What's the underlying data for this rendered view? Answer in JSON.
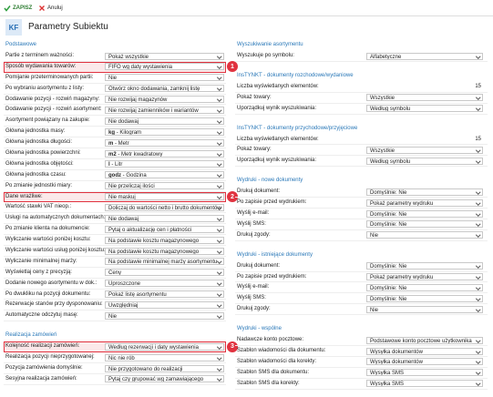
{
  "toolbar": {
    "save": "ZAPISZ",
    "cancel": "Anuluj"
  },
  "header": {
    "badge": "KF",
    "title": "Parametry Subiektu"
  },
  "left": {
    "sections": [
      {
        "title": "Podstawowe",
        "rows": [
          {
            "label": "Partie z terminem ważności:",
            "value": "Pokaż wszystkie"
          },
          {
            "label": "Sposób wydawania towarów:",
            "value": "FIFO wg daty wystawienia",
            "badge": "1"
          },
          {
            "label": "Pomijanie przeterminowanych partii:",
            "value": "Nie"
          },
          {
            "label": "Po wybraniu asortymentu z listy:",
            "value": "Otwórz okno dodawania, zamknij listę"
          },
          {
            "label": "Dodawanie pozycji - rozwiń magazyny:",
            "value": "Nie rozwijaj magazynów"
          },
          {
            "label": "Dodawanie pozycji - rozwiń asortyment:",
            "value": "Nie rozwijaj zamienników i wariantów"
          },
          {
            "label": "Asortyment powiązany na zakupie:",
            "value": "Nie dodawaj"
          },
          {
            "label": "Główna jednostka masy:",
            "code": "kg",
            "value": "- Kilogram"
          },
          {
            "label": "Główna jednostka długości:",
            "code": "m",
            "value": "- Metr"
          },
          {
            "label": "Główna jednostka powierzchni:",
            "code": "m2",
            "value": "- Metr kwadratowy"
          },
          {
            "label": "Główna jednostka objętości:",
            "code": "l",
            "value": "- Litr"
          },
          {
            "label": "Główna jednostka czasu:",
            "code": "godz",
            "value": "- Godzina"
          },
          {
            "label": "Po zmianie jednostki miary:",
            "value": "Nie przeliczaj ilości"
          },
          {
            "label": "Dane wrażliwe:",
            "value": "Nie maskuj",
            "badge": "2"
          },
          {
            "label": "Wartość stawki VAT nieop.:",
            "value": "Doliczaj do wartości netto i brutto dokumentów"
          },
          {
            "label": "Usługi na automatycznych dokumentach:",
            "value": "Nie dodawaj"
          },
          {
            "label": "Po zmianie klienta na dokumencie:",
            "value": "Pytaj o aktualizację cen i płatności"
          },
          {
            "label": "Wyliczanie wartości poniżej kosztu:",
            "value": "Na podstawie kosztu magazynowego"
          },
          {
            "label": "Wyliczanie wartości usług poniżej kosztu:",
            "value": "Na podstawie kosztu magazynowego"
          },
          {
            "label": "Wyliczanie minimalnej marży:",
            "value": "Na podstawie minimalnej marży asortymentu"
          },
          {
            "label": "Wyświetlaj ceny z precyzją:",
            "value": "Ceny"
          },
          {
            "label": "Dodanie nowego asortymentu w dok.:",
            "value": "Uproszczone"
          },
          {
            "label": "Po dwukliku na pozycji dokumentu:",
            "value": "Pokaż listę asortymentu"
          },
          {
            "label": "Rezerwacje stanów przy dysponowaniu:",
            "value": "Uwzględniaj"
          },
          {
            "label": "Automatyczne odczytuj masę:",
            "value": "Nie"
          }
        ]
      },
      {
        "title": "Realizacja zamówień",
        "rows": [
          {
            "label": "Kolejność realizacji zamówień:",
            "value": "Według rezerwacji i daty wystawienia",
            "badge": "3"
          },
          {
            "label": "Realizacja pozycji nieprzygotowanej:",
            "value": "Nic nie rób"
          },
          {
            "label": "Pozycja zamówienia domyślnie:",
            "value": "Nie przygotowano do realizacji"
          },
          {
            "label": "Sesyjna realizacja zamówień:",
            "value": "Pytaj czy grupować wg zamawiającego"
          }
        ]
      }
    ]
  },
  "right": {
    "sections": [
      {
        "title": "Wyszukiwanie asortymentu",
        "rows": [
          {
            "label": "Wyszukuje po symbolu:",
            "value": "Alfabetyczne"
          }
        ]
      },
      {
        "title": "InsTYNKT - dokumenty rozchodowe/wydaniowe",
        "rows": [
          {
            "label": "Liczba wyświetlanych elementów:",
            "number": 15
          },
          {
            "label": "Pokaż towary:",
            "value": "Wszystkie"
          },
          {
            "label": "Uporządkuj wynik wyszukiwania:",
            "value": "Według symbolu"
          }
        ]
      },
      {
        "title": "InsTYNKT - dokumenty przychodowe/przyjęciowe",
        "rows": [
          {
            "label": "Liczba wyświetlanych elementów:",
            "number": 15
          },
          {
            "label": "Pokaż towary:",
            "value": "Wszystkie"
          },
          {
            "label": "Uporządkuj wynik wyszukiwania:",
            "value": "Według symbolu"
          }
        ]
      },
      {
        "title": "Wydruki - nowe dokumenty",
        "rows": [
          {
            "label": "Drukuj dokument:",
            "value": "Domyślnie: Nie"
          },
          {
            "label": "Po zapisie przed wydrukiem:",
            "value": "Pokaż parametry wydruku"
          },
          {
            "label": "Wyślij e-mail:",
            "value": "Domyślnie: Nie"
          },
          {
            "label": "Wyślij SMS:",
            "value": "Domyślnie: Nie"
          },
          {
            "label": "Drukuj zgody:",
            "value": "Nie"
          }
        ]
      },
      {
        "title": "Wydruki - istniejące dokumenty",
        "rows": [
          {
            "label": "Drukuj dokument:",
            "value": "Domyślnie: Nie"
          },
          {
            "label": "Po zapisie przed wydrukiem:",
            "value": "Pokaż parametry wydruku"
          },
          {
            "label": "Wyślij e-mail:",
            "value": "Domyślnie: Nie"
          },
          {
            "label": "Wyślij SMS:",
            "value": "Domyślnie: Nie"
          },
          {
            "label": "Drukuj zgody:",
            "value": "Nie"
          }
        ]
      },
      {
        "title": "Wydruki - wspólne",
        "rows": [
          {
            "label": "Nadawcze konto pocztowe:",
            "value": "Podstawowe konto pocztowe użytkownika"
          },
          {
            "label": "Szablon wiadomości dla dokumentu:",
            "value": "Wysyłka dokumentów"
          },
          {
            "label": "Szablon wiadomości dla korekty:",
            "value": "Wysyłka dokumentów"
          },
          {
            "label": "Szablon SMS dla dokumentu:",
            "value": "Wysyłka SMS"
          },
          {
            "label": "Szablon SMS dla korekty:",
            "value": "Wysyłka SMS"
          }
        ]
      }
    ]
  }
}
